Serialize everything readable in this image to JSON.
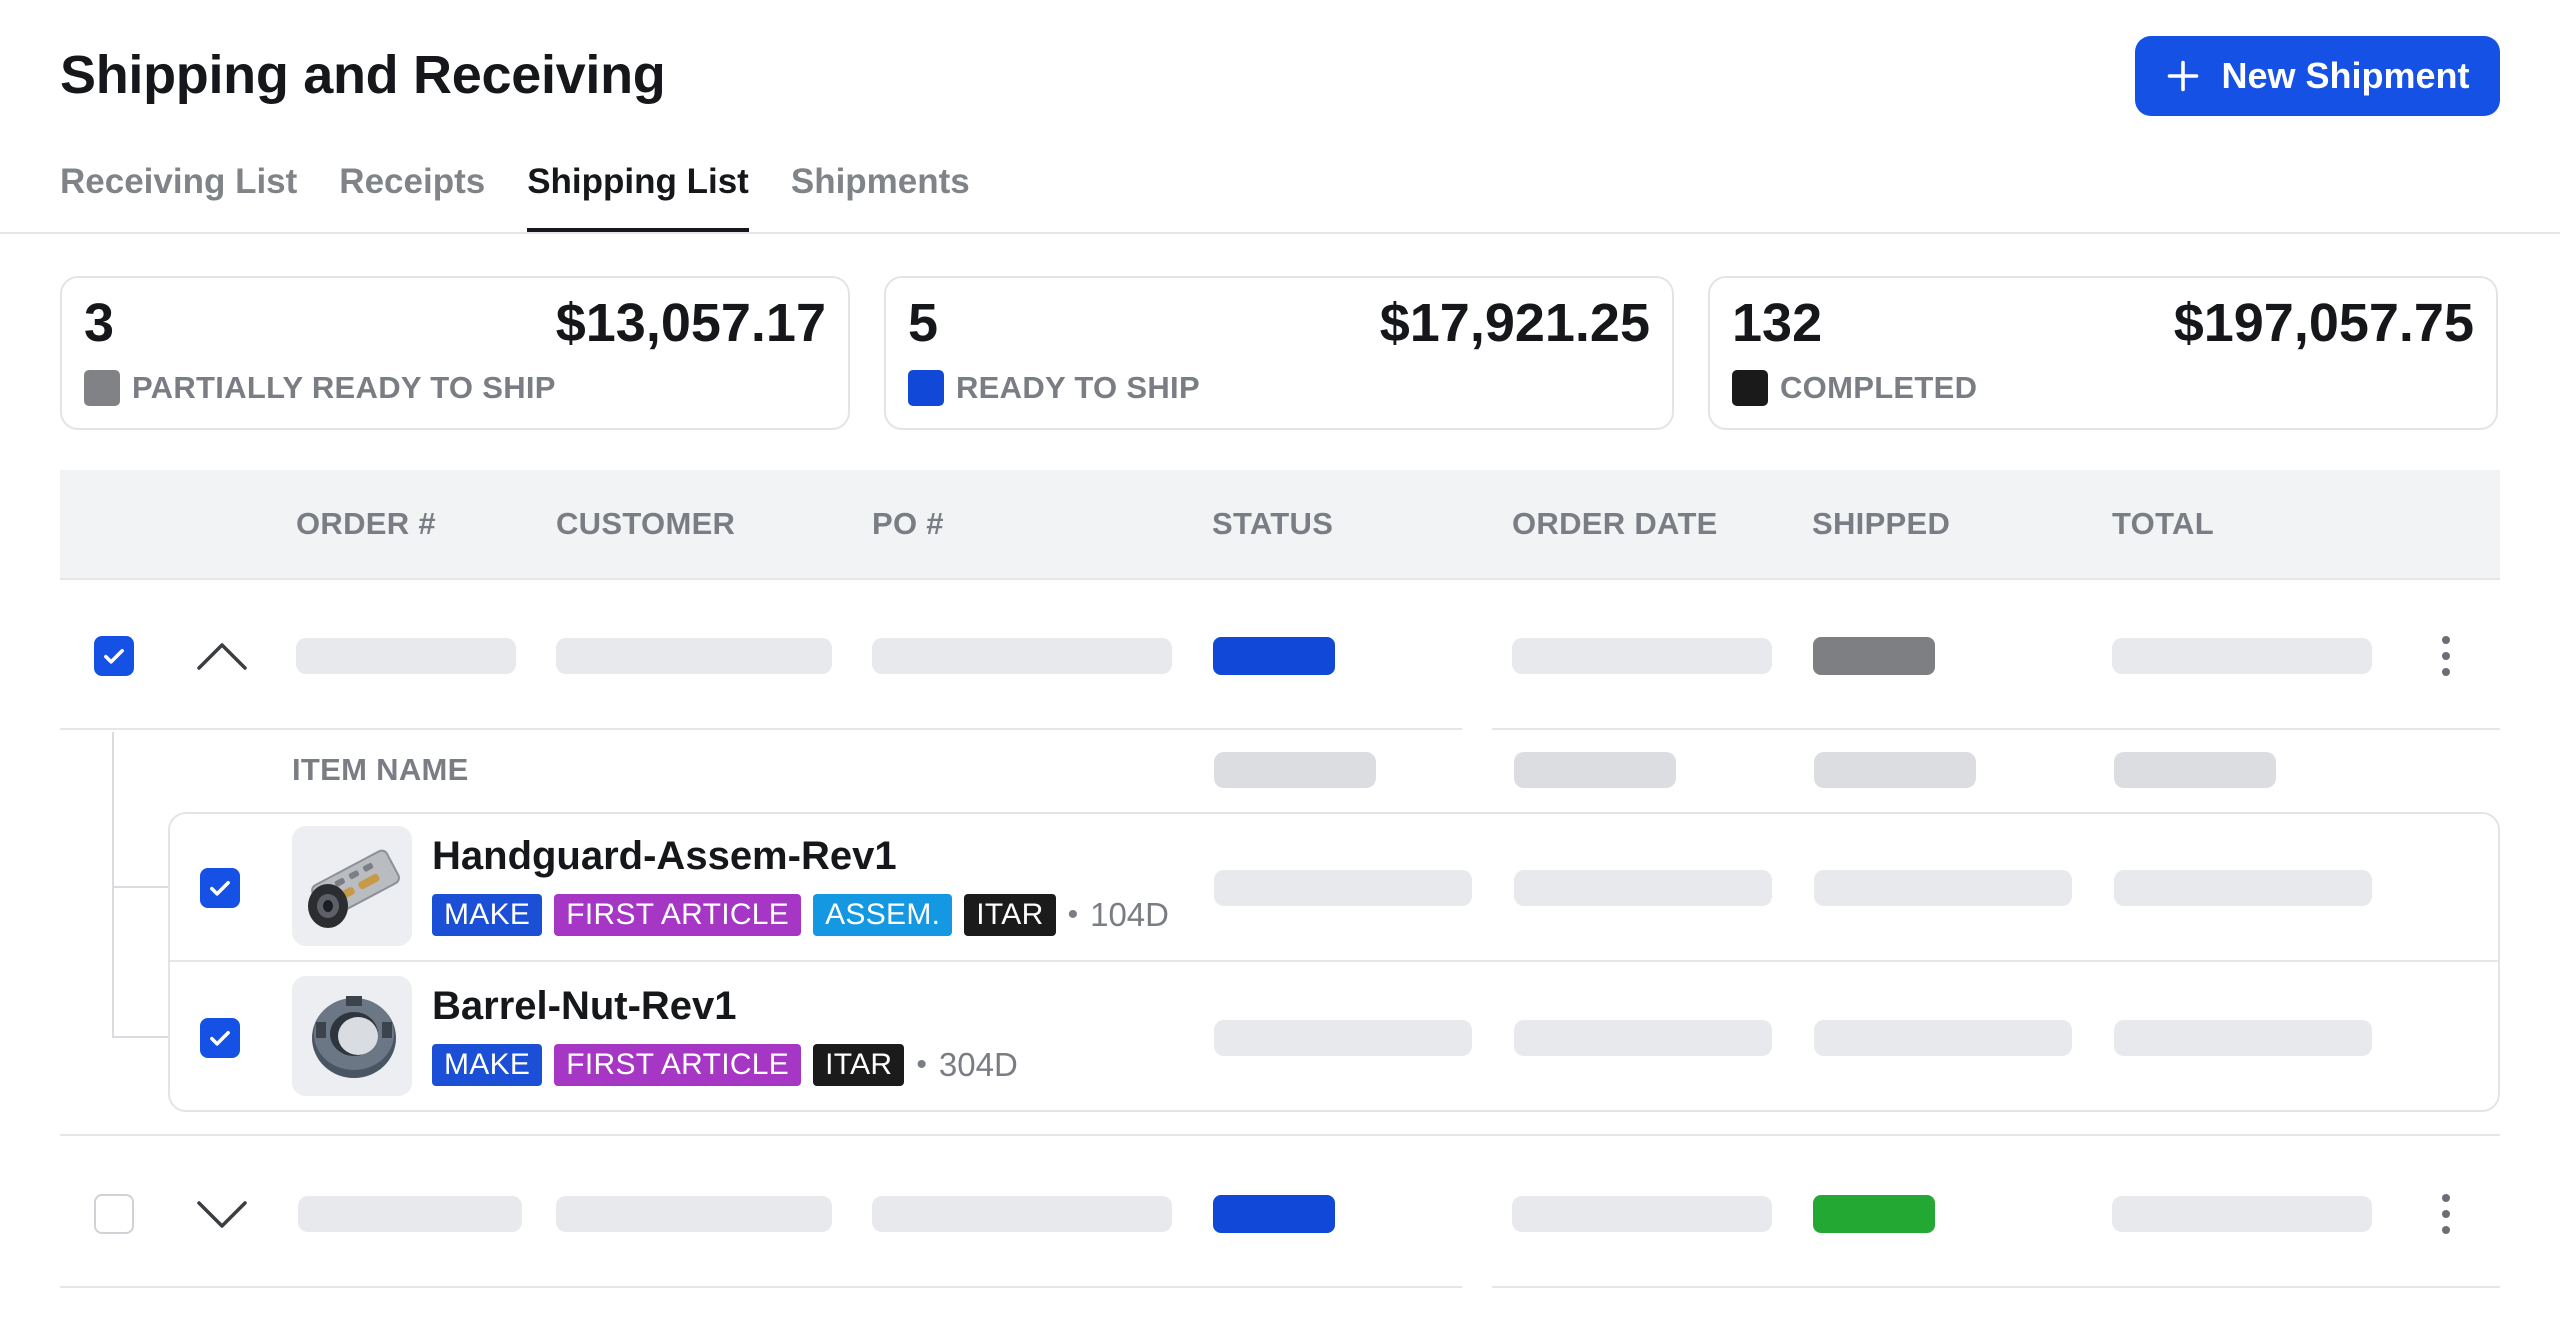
{
  "header": {
    "title": "Shipping and Receiving",
    "new_button": "New Shipment"
  },
  "tabs": [
    {
      "label": "Receiving List",
      "active": false
    },
    {
      "label": "Receipts",
      "active": false
    },
    {
      "label": "Shipping List",
      "active": true
    },
    {
      "label": "Shipments",
      "active": false
    }
  ],
  "summary": [
    {
      "count": "3",
      "total": "$13,057.17",
      "label": "PARTIALLY READY TO SHIP",
      "color": "#808285"
    },
    {
      "count": "5",
      "total": "$17,921.25",
      "label": "READY TO SHIP",
      "color": "#1148d8"
    },
    {
      "count": "132",
      "total": "$197,057.75",
      "label": "COMPLETED",
      "color": "#1a1a1a"
    }
  ],
  "table": {
    "columns": [
      "ORDER #",
      "CUSTOMER",
      "PO #",
      "STATUS",
      "ORDER DATE",
      "SHIPPED",
      "TOTAL"
    ],
    "item_header": "ITEM NAME"
  },
  "items": [
    {
      "name": "Handguard-Assem-Rev1",
      "age": "104D",
      "tags": [
        {
          "label": "MAKE",
          "color": "#1a4fd6"
        },
        {
          "label": "FIRST ARTICLE",
          "color": "#a537c4"
        },
        {
          "label": "ASSEM.",
          "color": "#1398e1"
        },
        {
          "label": "ITAR",
          "color": "#1b1b1b"
        }
      ]
    },
    {
      "name": "Barrel-Nut-Rev1",
      "age": "304D",
      "tags": [
        {
          "label": "MAKE",
          "color": "#1a4fd6"
        },
        {
          "label": "FIRST ARTICLE",
          "color": "#a537c4"
        },
        {
          "label": "ITAR",
          "color": "#1b1b1b"
        }
      ]
    }
  ],
  "status_colors": {
    "ready": "#1148d8",
    "partial": "#7d7f83",
    "shipped": "#22a833"
  },
  "separator": "•"
}
